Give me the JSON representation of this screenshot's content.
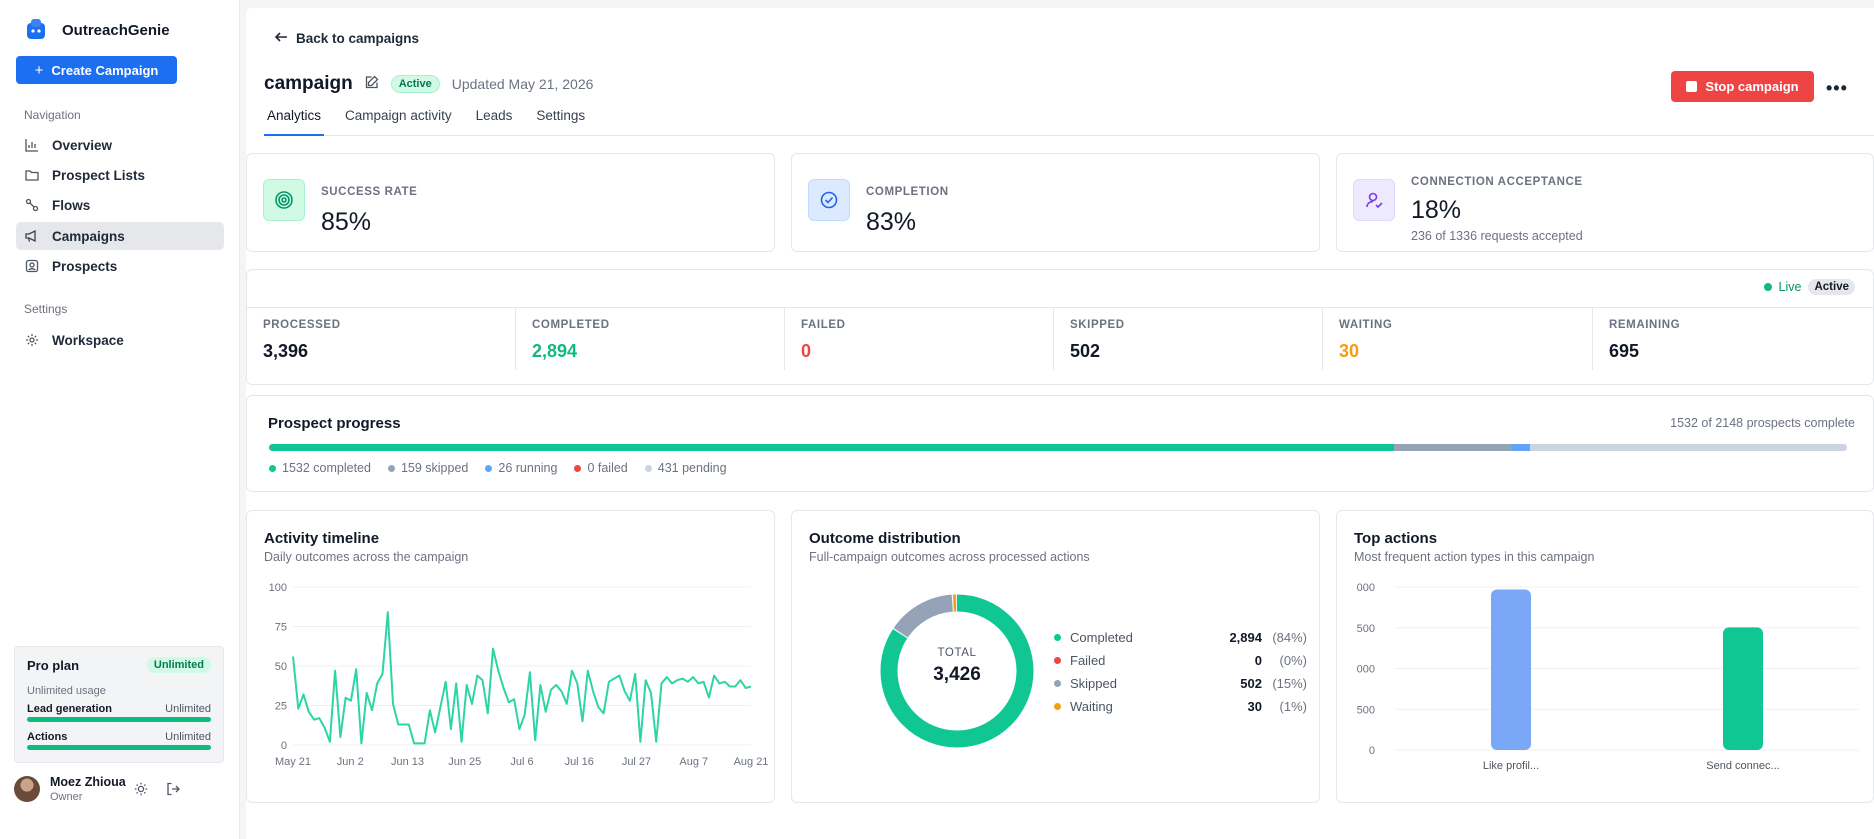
{
  "app": {
    "name": "OutreachGenie",
    "create_label": "Create Campaign"
  },
  "sidebar": {
    "nav_label": "Navigation",
    "items": [
      {
        "label": "Overview",
        "icon": "bar-chart-icon"
      },
      {
        "label": "Prospect Lists",
        "icon": "folder-icon"
      },
      {
        "label": "Flows",
        "icon": "flow-icon"
      },
      {
        "label": "Campaigns",
        "icon": "megaphone-icon",
        "active": true
      },
      {
        "label": "Prospects",
        "icon": "contact-icon"
      }
    ],
    "settings_label": "Settings",
    "settings_items": [
      {
        "label": "Workspace",
        "icon": "gear-icon"
      }
    ],
    "plan": {
      "name": "Pro plan",
      "badge": "Unlimited",
      "usage": "Unlimited usage",
      "quotas": [
        {
          "name": "Lead generation",
          "value": "Unlimited",
          "fill": 1.0
        },
        {
          "name": "Actions",
          "value": "Unlimited",
          "fill": 1.0
        }
      ]
    },
    "user": {
      "name": "Moez Zhioua",
      "role": "Owner"
    }
  },
  "header": {
    "back_label": "Back to campaigns",
    "title": "campaign",
    "status": "Active",
    "updated": "Updated May 21, 2026",
    "stop_label": "Stop campaign",
    "more_label": "•••"
  },
  "tabs": [
    "Analytics",
    "Campaign activity",
    "Leads",
    "Settings"
  ],
  "kpis": {
    "success": {
      "label": "SUCCESS RATE",
      "value": "85%"
    },
    "completion": {
      "label": "COMPLETION",
      "value": "83%"
    },
    "acceptance": {
      "label": "CONNECTION ACCEPTANCE",
      "value": "18%",
      "sub": "236 of 1336 requests accepted"
    }
  },
  "live": {
    "label": "Live",
    "badge": "Active"
  },
  "stats": [
    {
      "label": "PROCESSED",
      "value": "3,396",
      "color": "#111827"
    },
    {
      "label": "COMPLETED",
      "value": "2,894",
      "color": "#10b981"
    },
    {
      "label": "FAILED",
      "value": "0",
      "color": "#ef4444"
    },
    {
      "label": "SKIPPED",
      "value": "502",
      "color": "#111827"
    },
    {
      "label": "WAITING",
      "value": "30",
      "color": "#f59e0b"
    },
    {
      "label": "REMAINING",
      "value": "695",
      "color": "#111827"
    }
  ],
  "progress": {
    "title": "Prospect progress",
    "summary": "1532 of 2148 prospects complete",
    "segments": [
      {
        "label": "1532 completed",
        "value": 1532,
        "color": "#10c794"
      },
      {
        "label": "159 skipped",
        "value": 159,
        "color": "#94a3b8"
      },
      {
        "label": "26 running",
        "value": 26,
        "color": "#60a5fa"
      },
      {
        "label": "0 failed",
        "value": 0,
        "color": "#ef4444"
      },
      {
        "label": "431 pending",
        "value": 431,
        "color": "#cbd5e1"
      }
    ]
  },
  "timeline": {
    "title": "Activity timeline",
    "subtitle": "Daily outcomes across the campaign"
  },
  "outcome": {
    "title": "Outcome distribution",
    "subtitle": "Full-campaign outcomes across processed actions",
    "total_label": "TOTAL",
    "total_value": "3,426"
  },
  "top_actions": {
    "title": "Top actions",
    "subtitle": "Most frequent action types in this campaign"
  },
  "chart_data": [
    {
      "type": "line",
      "title": "Activity timeline",
      "x_tick_labels": [
        "May 21",
        "Jun 2",
        "Jun 13",
        "Jun 25",
        "Jul 6",
        "Jul 16",
        "Jul 27",
        "Aug 7",
        "Aug 21"
      ],
      "y_ticks": [
        "100",
        "75",
        "50",
        "25",
        "0"
      ],
      "ylim": [
        0,
        100
      ],
      "color": "#2dd4a4",
      "series": [
        {
          "values": [
            56,
            23,
            32,
            21,
            16,
            17,
            11,
            2,
            47,
            5,
            30,
            28,
            48,
            1,
            33,
            22,
            39,
            45,
            84,
            26,
            13,
            13,
            13,
            1,
            1,
            1,
            22,
            8,
            24,
            40,
            10,
            39,
            2,
            38,
            26,
            44,
            41,
            20,
            61,
            47,
            36,
            27,
            29,
            10,
            19,
            46,
            3,
            38,
            21,
            35,
            38,
            34,
            26,
            47,
            39,
            15,
            47,
            34,
            24,
            20,
            40,
            42,
            44,
            34,
            28,
            45,
            2,
            41,
            33,
            2,
            39,
            43,
            39,
            41,
            42,
            40,
            43,
            39,
            40,
            30,
            44,
            39,
            40,
            37,
            37,
            41,
            36,
            37
          ]
        }
      ]
    },
    {
      "type": "pie",
      "title": "Outcome distribution",
      "categories": [
        "Completed",
        "Failed",
        "Skipped",
        "Waiting"
      ],
      "values": [
        2894,
        0,
        502,
        30
      ],
      "labels": [
        "(84%)",
        "(0%)",
        "(15%)",
        "(1%)"
      ],
      "value_labels": [
        "2,894",
        "0",
        "502",
        "30"
      ],
      "colors": [
        "#10c794",
        "#ef4444",
        "#94a3b8",
        "#f59e0b"
      ]
    },
    {
      "type": "bar",
      "title": "Top actions",
      "categories": [
        "Like profil...",
        "Send connec..."
      ],
      "values": [
        1970,
        1505
      ],
      "y_ticks": [
        "000",
        "500",
        "000",
        "500",
        "0"
      ],
      "ylim": [
        0,
        2000
      ],
      "colors": [
        "#7ba7f7",
        "#10c794"
      ]
    }
  ]
}
